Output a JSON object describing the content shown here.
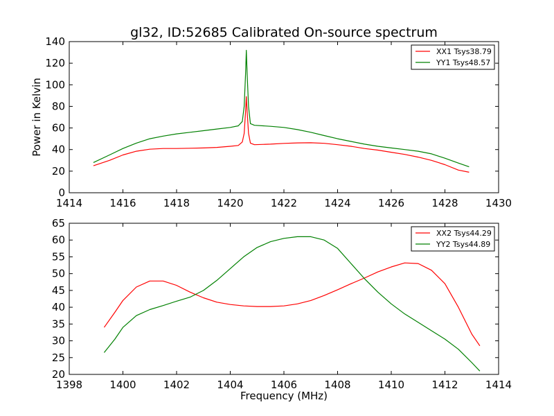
{
  "chart_data": [
    {
      "type": "line",
      "title": "gl32, ID:52685 Calibrated On-source spectrum",
      "xlabel": "",
      "ylabel": "Power in Kelvin",
      "xlim": [
        1414,
        1430
      ],
      "ylim": [
        0,
        140
      ],
      "xticks": [
        "1414",
        "1416",
        "1418",
        "1420",
        "1422",
        "1424",
        "1426",
        "1428",
        "1430"
      ],
      "yticks": [
        "0",
        "20",
        "40",
        "60",
        "80",
        "100",
        "120",
        "140"
      ],
      "grid": false,
      "legend_position": "top-right",
      "series": [
        {
          "name": "XX1 Tsys38.79",
          "color": "#ff0000",
          "points": [
            [
              1414.9,
              25
            ],
            [
              1415.5,
              30
            ],
            [
              1416,
              35
            ],
            [
              1416.5,
              38.5
            ],
            [
              1417,
              40.3
            ],
            [
              1417.5,
              41
            ],
            [
              1418,
              41
            ],
            [
              1418.5,
              41.2
            ],
            [
              1419,
              41.5
            ],
            [
              1419.5,
              42
            ],
            [
              1420,
              43
            ],
            [
              1420.3,
              43.8
            ],
            [
              1420.45,
              47
            ],
            [
              1420.52,
              55
            ],
            [
              1420.57,
              75
            ],
            [
              1420.6,
              89
            ],
            [
              1420.63,
              75
            ],
            [
              1420.68,
              55
            ],
            [
              1420.75,
              46
            ],
            [
              1420.9,
              44.5
            ],
            [
              1421.5,
              45
            ],
            [
              1422,
              45.7
            ],
            [
              1422.5,
              46.2
            ],
            [
              1423,
              46.3
            ],
            [
              1423.5,
              45.8
            ],
            [
              1424,
              44.5
            ],
            [
              1424.5,
              43
            ],
            [
              1425,
              41
            ],
            [
              1425.5,
              39.5
            ],
            [
              1426,
              37.5
            ],
            [
              1426.5,
              35.5
            ],
            [
              1427,
              33
            ],
            [
              1427.5,
              30
            ],
            [
              1428,
              26
            ],
            [
              1428.5,
              21
            ],
            [
              1428.9,
              19
            ]
          ]
        },
        {
          "name": "YY1 Tsys48.57",
          "color": "#008000",
          "points": [
            [
              1414.9,
              28
            ],
            [
              1415.5,
              35
            ],
            [
              1416,
              41
            ],
            [
              1416.5,
              46
            ],
            [
              1417,
              50
            ],
            [
              1417.5,
              52.5
            ],
            [
              1418,
              54.5
            ],
            [
              1418.5,
              56
            ],
            [
              1419,
              57.5
            ],
            [
              1419.5,
              59
            ],
            [
              1420,
              60.5
            ],
            [
              1420.3,
              62
            ],
            [
              1420.45,
              66
            ],
            [
              1420.52,
              80
            ],
            [
              1420.57,
              110
            ],
            [
              1420.6,
              132
            ],
            [
              1420.63,
              110
            ],
            [
              1420.68,
              80
            ],
            [
              1420.75,
              64
            ],
            [
              1420.9,
              62.5
            ],
            [
              1421.5,
              61.5
            ],
            [
              1422,
              60.5
            ],
            [
              1422.5,
              58.5
            ],
            [
              1423,
              56
            ],
            [
              1423.5,
              53
            ],
            [
              1424,
              50
            ],
            [
              1424.5,
              47.5
            ],
            [
              1425,
              45
            ],
            [
              1425.5,
              43
            ],
            [
              1426,
              41.5
            ],
            [
              1426.5,
              40
            ],
            [
              1427,
              38.5
            ],
            [
              1427.5,
              36
            ],
            [
              1428,
              32
            ],
            [
              1428.5,
              27.5
            ],
            [
              1428.9,
              24
            ]
          ]
        }
      ]
    },
    {
      "type": "line",
      "title": "",
      "xlabel": "Frequency (MHz)",
      "ylabel": "",
      "xlim": [
        1398,
        1414
      ],
      "ylim": [
        20,
        65
      ],
      "xticks": [
        "1398",
        "1400",
        "1402",
        "1404",
        "1406",
        "1408",
        "1410",
        "1412",
        "1414"
      ],
      "yticks": [
        "20",
        "25",
        "30",
        "35",
        "40",
        "45",
        "50",
        "55",
        "60",
        "65"
      ],
      "grid": false,
      "legend_position": "top-right",
      "series": [
        {
          "name": "XX2 Tsys44.29",
          "color": "#ff0000",
          "points": [
            [
              1399.3,
              34
            ],
            [
              1399.7,
              38.5
            ],
            [
              1400,
              42
            ],
            [
              1400.5,
              46
            ],
            [
              1401,
              47.8
            ],
            [
              1401.5,
              47.8
            ],
            [
              1402,
              46.5
            ],
            [
              1402.5,
              44.5
            ],
            [
              1403,
              42.8
            ],
            [
              1403.5,
              41.5
            ],
            [
              1404,
              40.8
            ],
            [
              1404.5,
              40.4
            ],
            [
              1405,
              40.2
            ],
            [
              1405.5,
              40.2
            ],
            [
              1406,
              40.4
            ],
            [
              1406.5,
              41
            ],
            [
              1407,
              42
            ],
            [
              1407.5,
              43.5
            ],
            [
              1408,
              45.2
            ],
            [
              1408.5,
              47
            ],
            [
              1409,
              48.7
            ],
            [
              1409.5,
              50.5
            ],
            [
              1410,
              52
            ],
            [
              1410.5,
              53.2
            ],
            [
              1411,
              53
            ],
            [
              1411.5,
              51
            ],
            [
              1412,
              47
            ],
            [
              1412.5,
              40
            ],
            [
              1413,
              32
            ],
            [
              1413.3,
              28.5
            ]
          ]
        },
        {
          "name": "YY2 Tsys44.89",
          "color": "#008000",
          "points": [
            [
              1399.3,
              26.5
            ],
            [
              1399.7,
              30.5
            ],
            [
              1400,
              34
            ],
            [
              1400.5,
              37.5
            ],
            [
              1401,
              39.3
            ],
            [
              1401.5,
              40.5
            ],
            [
              1402,
              41.8
            ],
            [
              1402.5,
              43
            ],
            [
              1403,
              45
            ],
            [
              1403.5,
              48
            ],
            [
              1404,
              51.5
            ],
            [
              1404.5,
              55
            ],
            [
              1405,
              57.8
            ],
            [
              1405.5,
              59.5
            ],
            [
              1406,
              60.5
            ],
            [
              1406.5,
              61
            ],
            [
              1407,
              61
            ],
            [
              1407.5,
              60
            ],
            [
              1408,
              57.5
            ],
            [
              1408.5,
              53
            ],
            [
              1409,
              48.5
            ],
            [
              1409.5,
              44.5
            ],
            [
              1410,
              41
            ],
            [
              1410.5,
              38
            ],
            [
              1411,
              35.5
            ],
            [
              1411.5,
              33
            ],
            [
              1412,
              30.5
            ],
            [
              1412.5,
              27.5
            ],
            [
              1413,
              23.5
            ],
            [
              1413.3,
              21
            ]
          ]
        }
      ]
    }
  ]
}
